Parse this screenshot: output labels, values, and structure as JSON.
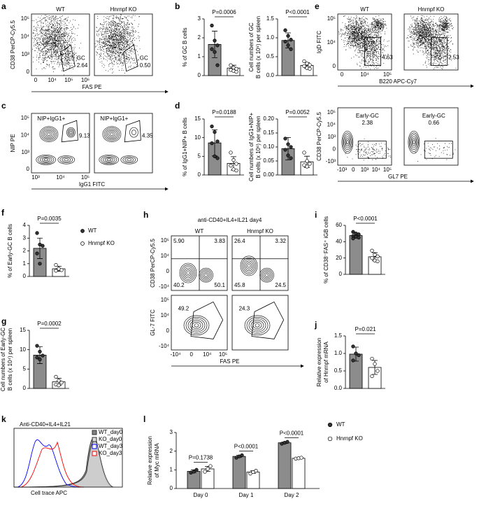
{
  "panels": [
    "a",
    "b",
    "c",
    "d",
    "e",
    "f",
    "g",
    "h",
    "i",
    "j",
    "k",
    "l"
  ],
  "chart_data": [
    {
      "type": "bar",
      "ylabel": [
        "% of GC B cells"
      ],
      "ylim": [
        0,
        3
      ],
      "yticks": [
        0,
        1,
        2,
        3
      ],
      "values": [
        1.65,
        0.4
      ],
      "errors": [
        0.7,
        0.15
      ],
      "colors": [
        "#8c8c8c",
        "#ffffff"
      ],
      "point_fills": [
        "#333333",
        "#ffffff"
      ],
      "points": [
        [
          2.65,
          1.85,
          1.6,
          1.4,
          1.25,
          0.55
        ],
        [
          0.55,
          0.42,
          0.36,
          0.3,
          0.25,
          0.2
        ]
      ],
      "p_value": "P=0.0006"
    },
    {
      "type": "bar",
      "ylabel": [
        "Cell numbers of GC",
        "B cells (x 10⁶) per spleen"
      ],
      "ylim": [
        0,
        1.5
      ],
      "yticks": [
        {
          "value": 0,
          "label": "0.0"
        },
        0.5,
        {
          "value": 1,
          "label": "1.0"
        },
        1.5
      ],
      "values": [
        0.93,
        0.27
      ],
      "errors": [
        0.2,
        0.07
      ],
      "colors": [
        "#8c8c8c",
        "#ffffff"
      ],
      "point_fills": [
        "#333333",
        "#ffffff"
      ],
      "points": [
        [
          1.2,
          1.05,
          0.95,
          0.9,
          0.8,
          0.7
        ],
        [
          0.38,
          0.32,
          0.28,
          0.25,
          0.2,
          0.18
        ]
      ],
      "p_value": "P<0.0001"
    },
    {
      "type": "bar",
      "ylabel": [
        "% of IgG1+NIP+ B cells"
      ],
      "ylim": [
        0,
        15
      ],
      "yticks": [
        0,
        5,
        10,
        15
      ],
      "values": [
        8.6,
        3.1
      ],
      "errors": [
        3.5,
        1.8
      ],
      "colors": [
        "#8c8c8c",
        "#ffffff"
      ],
      "point_fills": [
        "#333333",
        "#ffffff"
      ],
      "points": [
        [
          13,
          11.5,
          9,
          8.5,
          5,
          4.5
        ],
        [
          6,
          4,
          3,
          2.5,
          1.5,
          1.2
        ]
      ],
      "p_value": "P=0.0188"
    },
    {
      "type": "bar",
      "ylabel": [
        "Cell numbers of IgG1+NIP+",
        "B cells (x 10⁶) per spleen"
      ],
      "ylim": [
        0,
        0.2
      ],
      "yticks": [
        {
          "value": 0,
          "label": "0.00"
        },
        0.05,
        {
          "value": 0.1,
          "label": "0.10"
        },
        0.15,
        {
          "value": 0.2,
          "label": "0.20"
        }
      ],
      "values": [
        0.094,
        0.047
      ],
      "errors": [
        0.04,
        0.02
      ],
      "colors": [
        "#8c8c8c",
        "#ffffff"
      ],
      "point_fills": [
        "#333333",
        "#ffffff"
      ],
      "points": [
        [
          0.13,
          0.11,
          0.1,
          0.09,
          0.07,
          0.06
        ],
        [
          0.08,
          0.05,
          0.04,
          0.035,
          0.03
        ]
      ],
      "p_value": "P=0.0052"
    },
    {
      "type": "bar",
      "ylabel": [
        "% of Early-GC B cells"
      ],
      "ylim": [
        0,
        4
      ],
      "yticks": [
        0,
        1,
        2,
        3,
        4
      ],
      "values": [
        2.2,
        0.6
      ],
      "errors": [
        0.8,
        0.2
      ],
      "colors": [
        "#8c8c8c",
        "#ffffff"
      ],
      "point_fills": [
        "#333333",
        "#ffffff"
      ],
      "points": [
        [
          3.4,
          2.5,
          2.4,
          1.8,
          1.0
        ],
        [
          0.9,
          0.6,
          0.5,
          0.45
        ]
      ],
      "p_value": "P=0.0035",
      "legend": [
        "WT",
        "Hnrnpf KO"
      ]
    },
    {
      "type": "bar",
      "ylabel": [
        "Cell numbers of Early-GC",
        "B cells (x 10⁴) per spleen"
      ],
      "ylim": [
        0,
        15
      ],
      "yticks": [
        0,
        5,
        10,
        15
      ],
      "values": [
        8.6,
        1.7
      ],
      "errors": [
        2.2,
        0.9
      ],
      "colors": [
        "#8c8c8c",
        "#ffffff"
      ],
      "point_fills": [
        "#333333",
        "#ffffff"
      ],
      "points": [
        [
          11,
          9.5,
          8.5,
          8,
          7.5
        ],
        [
          3,
          2,
          1.5,
          1,
          0.8
        ]
      ],
      "p_value": "P=0.0002"
    },
    {
      "type": "bar",
      "ylabel": [
        "% of CD38⁻FAS⁺ iGB cells"
      ],
      "ylim": [
        0,
        60
      ],
      "yticks": [
        0,
        20,
        40,
        60
      ],
      "values": [
        47.5,
        21.5
      ],
      "errors": [
        3,
        5
      ],
      "colors": [
        "#8c8c8c",
        "#ffffff"
      ],
      "point_fills": [
        "#333333",
        "#ffffff"
      ],
      "points": [
        [
          52,
          50,
          49,
          47,
          46,
          45,
          44
        ],
        [
          29,
          24,
          22,
          20,
          17,
          16
        ]
      ],
      "p_value": "P<0.0001"
    },
    {
      "type": "bar",
      "ylabel": [
        "Relative expression",
        "of Hnrnpf mRNA"
      ],
      "ylim": [
        0,
        1.5
      ],
      "yticks": [
        {
          "value": 0,
          "label": "0.0"
        },
        0.5,
        {
          "value": 1,
          "label": "1.0"
        },
        1.5
      ],
      "values": [
        0.98,
        0.6
      ],
      "errors": [
        0.2,
        0.2
      ],
      "colors": [
        "#8c8c8c",
        "#ffffff"
      ],
      "point_fills": [
        "#333333",
        "#ffffff"
      ],
      "points": [
        [
          1.2,
          1.0,
          0.95,
          0.8
        ],
        [
          0.85,
          0.7,
          0.5,
          0.35
        ]
      ],
      "p_value": "P=0.021"
    },
    {
      "type": "grouped_bar",
      "ylabel": [
        "Relative expression",
        "of Myc mRNA"
      ],
      "ylim": [
        0,
        3
      ],
      "yticks": [
        0,
        1,
        2,
        3
      ],
      "categories": [
        "Day 0",
        "Day 1",
        "Day 2"
      ],
      "p_values": [
        "P=0.1738",
        "P<0.0001",
        "P<0.0001"
      ],
      "series": [
        {
          "name": "WT",
          "color": "#8c8c8c",
          "point_fill": "#333333",
          "values": [
            0.92,
            1.72,
            2.45
          ],
          "errors": [
            0.08,
            0.06,
            0.04
          ],
          "points": [
            [
              0.85,
              0.9,
              1.0
            ],
            [
              1.65,
              1.72,
              1.78
            ],
            [
              2.4,
              2.45,
              2.5
            ]
          ]
        },
        {
          "name": "Hnrnpf KO",
          "color": "#ffffff",
          "point_fill": "#ffffff",
          "values": [
            1.05,
            0.88,
            1.62
          ],
          "errors": [
            0.13,
            0.07,
            0.03
          ],
          "points": [
            [
              0.9,
              1.05,
              1.2
            ],
            [
              0.8,
              0.88,
              0.95
            ],
            [
              1.6,
              1.62,
              1.65
            ]
          ]
        }
      ]
    }
  ],
  "flow_panels": [
    {
      "ylabel": "CD38 PerCP-Cy5.5",
      "xlabel": "FAS PE",
      "yticks": [
        "0",
        "10³",
        "10⁴",
        "10⁵"
      ],
      "xticks": [
        "0",
        "10⁴",
        "10⁵",
        "10⁶"
      ],
      "plots": [
        {
          "title": "WT",
          "gate": "GC",
          "value": "2.64"
        },
        {
          "title": "Hnrnpf KO",
          "gate": "GC",
          "value": "0.50"
        }
      ]
    },
    {
      "ylabel": "NIP PE",
      "xlabel": "IgG1 FITC",
      "yticks": [
        "0",
        "10³",
        "10⁴",
        "10⁵"
      ],
      "xticks": [
        "10³",
        "10⁴",
        "10⁵"
      ],
      "plots": [
        {
          "gate": "NIP+IgG1+",
          "value": "9.13"
        },
        {
          "gate": "NIP+IgG1+",
          "value": "4.35"
        }
      ]
    },
    {
      "ylabel": "IgD FITC",
      "xlabel": "B220 APC-Cy7",
      "yticks": [
        "0",
        "10⁴",
        "10⁵"
      ],
      "xticks": [
        "0",
        "10⁴",
        "10⁵"
      ],
      "plots": [
        {
          "title": "WT",
          "value": "4.63"
        },
        {
          "title": "Hnrnpf KO",
          "value": "2.53"
        }
      ]
    },
    {
      "ylabel": "CD38 PerCP-Cy5.5",
      "xlabel": "GL7 PE",
      "yticks": [
        "-10³",
        "0",
        "10³",
        "10⁴",
        "10⁵"
      ],
      "xticks": [
        "-10³",
        "0",
        "10³",
        "10⁴",
        "10⁵"
      ],
      "plots": [
        {
          "gate": "Early-GC",
          "value": "2.38"
        },
        {
          "gate": "Early-GC",
          "value": "0.66"
        }
      ]
    },
    {
      "title": "anti-CD40+IL4+IL21 day4",
      "ylabel": "CD38 PerCP-Cy5.5",
      "yticks": [
        "-10⁴",
        "0",
        "10⁴",
        "10⁵"
      ],
      "plots": [
        {
          "title": "WT",
          "quadrants": [
            "5.90",
            "3.83",
            "40.2",
            "50.1"
          ]
        },
        {
          "title": "Hnrnpf KO",
          "quadrants": [
            "26.4",
            "3.32",
            "45.8",
            "24.5"
          ]
        }
      ]
    },
    {
      "ylabel": "GL-7 FITC",
      "xlabel": "FAS PE",
      "yticks": [
        "-10⁴",
        "0",
        "10⁴",
        "10⁵"
      ],
      "xticks": [
        "-10⁴",
        "0",
        "10⁴",
        "10⁵"
      ],
      "plots": [
        {
          "value": "49.2"
        },
        {
          "value": "24.3"
        }
      ]
    }
  ],
  "histogram": {
    "title": "Anti-CD40+IL4+IL21",
    "xlabel": "Cell trace APC",
    "legend": [
      {
        "name": "WT_day0",
        "color": "#808080"
      },
      {
        "name": "KO_day0",
        "color": "#d9d9d9"
      },
      {
        "name": "WT_day3",
        "color": "#0000ff"
      },
      {
        "name": "KO_day3",
        "color": "#ff0000"
      }
    ]
  }
}
